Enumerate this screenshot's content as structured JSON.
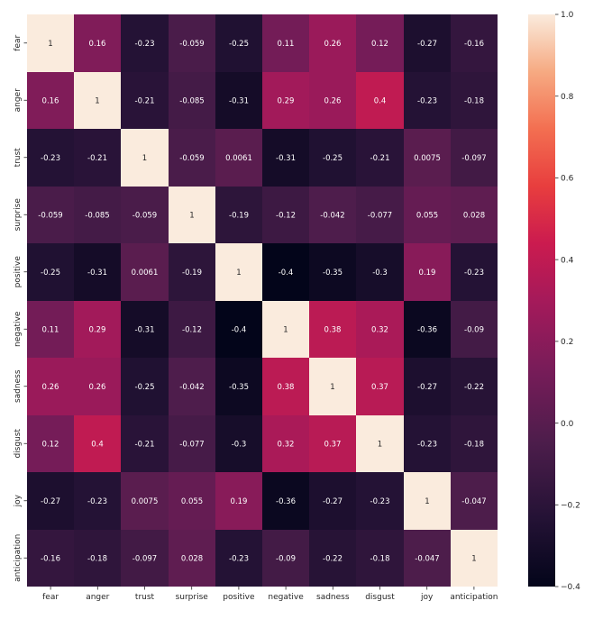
{
  "chart_data": {
    "type": "heatmap",
    "title": "",
    "xlabel": "",
    "ylabel": "",
    "rows": [
      "fear",
      "anger",
      "trust",
      "surprise",
      "positive",
      "negative",
      "sadness",
      "disgust",
      "joy",
      "anticipation"
    ],
    "columns": [
      "fear",
      "anger",
      "trust",
      "surprise",
      "positive",
      "negative",
      "sadness",
      "disgust",
      "joy",
      "anticipation"
    ],
    "values": [
      [
        1,
        0.16,
        -0.23,
        -0.059,
        -0.25,
        0.11,
        0.26,
        0.12,
        -0.27,
        -0.16
      ],
      [
        0.16,
        1,
        -0.21,
        -0.085,
        -0.31,
        0.29,
        0.26,
        0.4,
        -0.23,
        -0.18
      ],
      [
        -0.23,
        -0.21,
        1,
        -0.059,
        0.0061,
        -0.31,
        -0.25,
        -0.21,
        0.0075,
        -0.097
      ],
      [
        -0.059,
        -0.085,
        -0.059,
        1,
        -0.19,
        -0.12,
        -0.042,
        -0.077,
        0.055,
        0.028
      ],
      [
        -0.25,
        -0.31,
        0.0061,
        -0.19,
        1,
        -0.4,
        -0.35,
        -0.3,
        0.19,
        -0.23
      ],
      [
        0.11,
        0.29,
        -0.31,
        -0.12,
        -0.4,
        1,
        0.38,
        0.32,
        -0.36,
        -0.09
      ],
      [
        0.26,
        0.26,
        -0.25,
        -0.042,
        -0.35,
        0.38,
        1,
        0.37,
        -0.27,
        -0.22
      ],
      [
        0.12,
        0.4,
        -0.21,
        -0.077,
        -0.3,
        0.32,
        0.37,
        1,
        -0.23,
        -0.18
      ],
      [
        -0.27,
        -0.23,
        0.0075,
        0.055,
        0.19,
        -0.36,
        -0.27,
        -0.23,
        1,
        -0.047
      ],
      [
        -0.16,
        -0.18,
        -0.097,
        0.028,
        -0.23,
        -0.09,
        -0.22,
        -0.18,
        -0.047,
        1
      ]
    ],
    "annotations": [
      [
        "1",
        "0.16",
        "-0.23",
        "-0.059",
        "-0.25",
        "0.11",
        "0.26",
        "0.12",
        "-0.27",
        "-0.16"
      ],
      [
        "0.16",
        "1",
        "-0.21",
        "-0.085",
        "-0.31",
        "0.29",
        "0.26",
        "0.4",
        "-0.23",
        "-0.18"
      ],
      [
        "-0.23",
        "-0.21",
        "1",
        "-0.059",
        "0.0061",
        "-0.31",
        "-0.25",
        "-0.21",
        "0.0075",
        "-0.097"
      ],
      [
        "-0.059",
        "-0.085",
        "-0.059",
        "1",
        "-0.19",
        "-0.12",
        "-0.042",
        "-0.077",
        "0.055",
        "0.028"
      ],
      [
        "-0.25",
        "-0.31",
        "0.0061",
        "-0.19",
        "1",
        "-0.4",
        "-0.35",
        "-0.3",
        "0.19",
        "-0.23"
      ],
      [
        "0.11",
        "0.29",
        "-0.31",
        "-0.12",
        "-0.4",
        "1",
        "0.38",
        "0.32",
        "-0.36",
        "-0.09"
      ],
      [
        "0.26",
        "0.26",
        "-0.25",
        "-0.042",
        "-0.35",
        "0.38",
        "1",
        "0.37",
        "-0.27",
        "-0.22"
      ],
      [
        "0.12",
        "0.4",
        "-0.21",
        "-0.077",
        "-0.3",
        "0.32",
        "0.37",
        "1",
        "-0.23",
        "-0.18"
      ],
      [
        "-0.27",
        "-0.23",
        "0.0075",
        "0.055",
        "0.19",
        "-0.36",
        "-0.27",
        "-0.23",
        "1",
        "-0.047"
      ],
      [
        "-0.16",
        "-0.18",
        "-0.097",
        "0.028",
        "-0.23",
        "-0.09",
        "-0.22",
        "-0.18",
        "-0.047",
        "1"
      ]
    ],
    "colorscale": "rocket",
    "vmin": -0.4,
    "vmax": 1.0,
    "colorbar": {
      "ticks": [
        1.0,
        0.8,
        0.6,
        0.4,
        0.2,
        0.0,
        -0.2,
        -0.4
      ],
      "tick_labels": [
        "1.0",
        "0.8",
        "0.6",
        "0.4",
        "0.2",
        "0.0",
        "−0.2",
        "−0.4"
      ],
      "position": "right"
    },
    "grid": false
  }
}
